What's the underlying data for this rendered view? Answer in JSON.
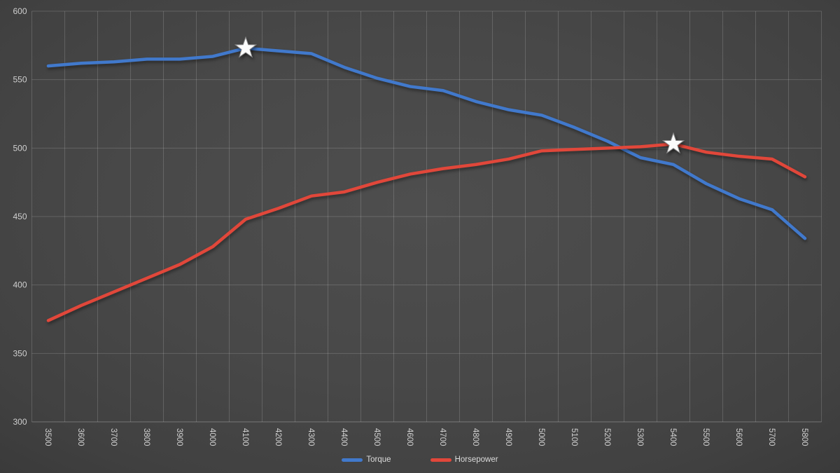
{
  "chart_data": {
    "type": "line",
    "title": "",
    "xlabel": "",
    "ylabel": "",
    "x": [
      3500,
      3600,
      3700,
      3800,
      3900,
      4000,
      4100,
      4200,
      4300,
      4400,
      4500,
      4600,
      4700,
      4800,
      4900,
      5000,
      5100,
      5200,
      5300,
      5400,
      5500,
      5600,
      5700,
      5800
    ],
    "series": [
      {
        "name": "Torque",
        "color": "#4179cc",
        "values": [
          560,
          562,
          563,
          565,
          565,
          567,
          573,
          571,
          569,
          559,
          551,
          545,
          542,
          534,
          528,
          524,
          515,
          505,
          493,
          488,
          474,
          463,
          455,
          434
        ],
        "peak": {
          "rpm": 4100,
          "value": 573
        }
      },
      {
        "name": "Horsepower",
        "color": "#e1473a",
        "values": [
          374,
          385,
          395,
          405,
          415,
          428,
          448,
          456,
          465,
          468,
          475,
          481,
          485,
          488,
          492,
          498,
          499,
          500,
          501,
          503,
          497,
          494,
          492,
          479
        ],
        "peak": {
          "rpm": 5400,
          "value": 503
        }
      }
    ],
    "ylim": [
      300,
      600
    ],
    "ytick_step": 50,
    "yticks": [
      300,
      350,
      400,
      450,
      500,
      550,
      600
    ],
    "grid": true,
    "legend_position": "bottom",
    "peak_marker": "white-star",
    "axis_label_color": "#cfcfcf",
    "gridline_color": "rgba(255,255,255,0.16)",
    "axis_line_color": "rgba(255,255,255,0.28)",
    "background_center": "#4e4e4e",
    "background_edge": "#2d2d2d"
  }
}
